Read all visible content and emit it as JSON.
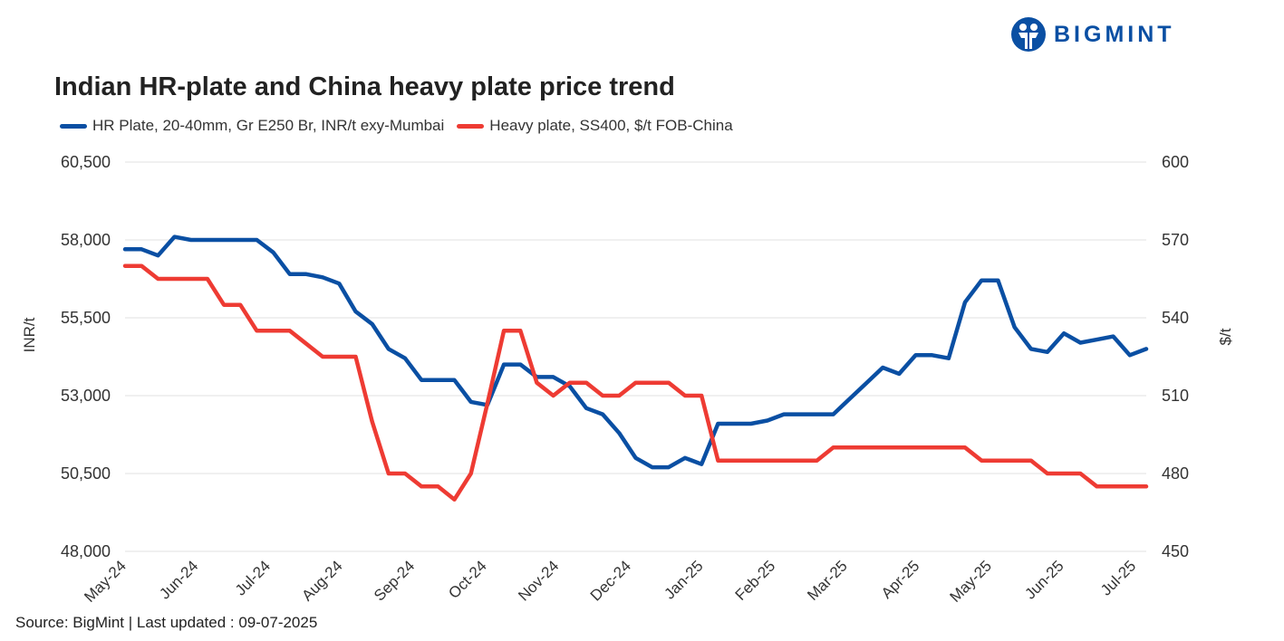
{
  "brand": {
    "name": "BIGMINT"
  },
  "colors": {
    "hr_plate": "#0a4fa3",
    "heavy_plate": "#ee3b33",
    "grid": "#ececec"
  },
  "chart_data": {
    "type": "line",
    "title": "Indian HR-plate and China heavy plate price trend",
    "source": "Source: BigMint | Last updated : 09-07-2025",
    "x_tick_labels": [
      "May-24",
      "Jun-24",
      "Jul-24",
      "Aug-24",
      "Sep-24",
      "Oct-24",
      "Nov-24",
      "Dec-24",
      "Jan-25",
      "Feb-25",
      "Mar-25",
      "Apr-25",
      "May-25",
      "Jun-25",
      "Jul-25"
    ],
    "y_left": {
      "label": "INR/t",
      "ticks": [
        "48,000",
        "50,500",
        "53,000",
        "55,500",
        "58,000",
        "60,500"
      ],
      "range": [
        48000,
        60500
      ]
    },
    "y_right": {
      "label": "$/t",
      "ticks": [
        "450",
        "480",
        "510",
        "540",
        "570",
        "600"
      ],
      "range": [
        450,
        600
      ]
    },
    "grid": true,
    "legend_position": "top-left",
    "series": [
      {
        "name": "HR Plate, 20-40mm, Gr E250 Br, INR/t exy-Mumbai",
        "axis": "left",
        "values": [
          57700,
          57700,
          57500,
          58100,
          58000,
          58000,
          58000,
          58000,
          58000,
          57600,
          56900,
          56900,
          56800,
          56600,
          55700,
          55300,
          54500,
          54200,
          53500,
          53500,
          53500,
          52800,
          52700,
          54000,
          54000,
          53600,
          53600,
          53300,
          52600,
          52400,
          51800,
          51000,
          50700,
          50700,
          51000,
          50800,
          52100,
          52100,
          52100,
          52200,
          52400,
          52400,
          52400,
          52400,
          52900,
          53400,
          53900,
          53700,
          54300,
          54300,
          54200,
          56000,
          56700,
          56700,
          55200,
          54500,
          54400,
          55000,
          54700,
          54800,
          54900,
          54300,
          54500
        ]
      },
      {
        "name": "Heavy plate, SS400, $/t FOB-China",
        "axis": "right",
        "values": [
          560,
          560,
          555,
          555,
          555,
          555,
          545,
          545,
          535,
          535,
          535,
          530,
          525,
          525,
          525,
          500,
          480,
          480,
          475,
          475,
          470,
          480,
          507,
          535,
          535,
          515,
          510,
          515,
          515,
          510,
          510,
          515,
          515,
          515,
          510,
          510,
          485,
          485,
          485,
          485,
          485,
          485,
          485,
          490,
          490,
          490,
          490,
          490,
          490,
          490,
          490,
          490,
          485,
          485,
          485,
          485,
          480,
          480,
          480,
          475,
          475,
          475,
          475
        ]
      }
    ]
  }
}
